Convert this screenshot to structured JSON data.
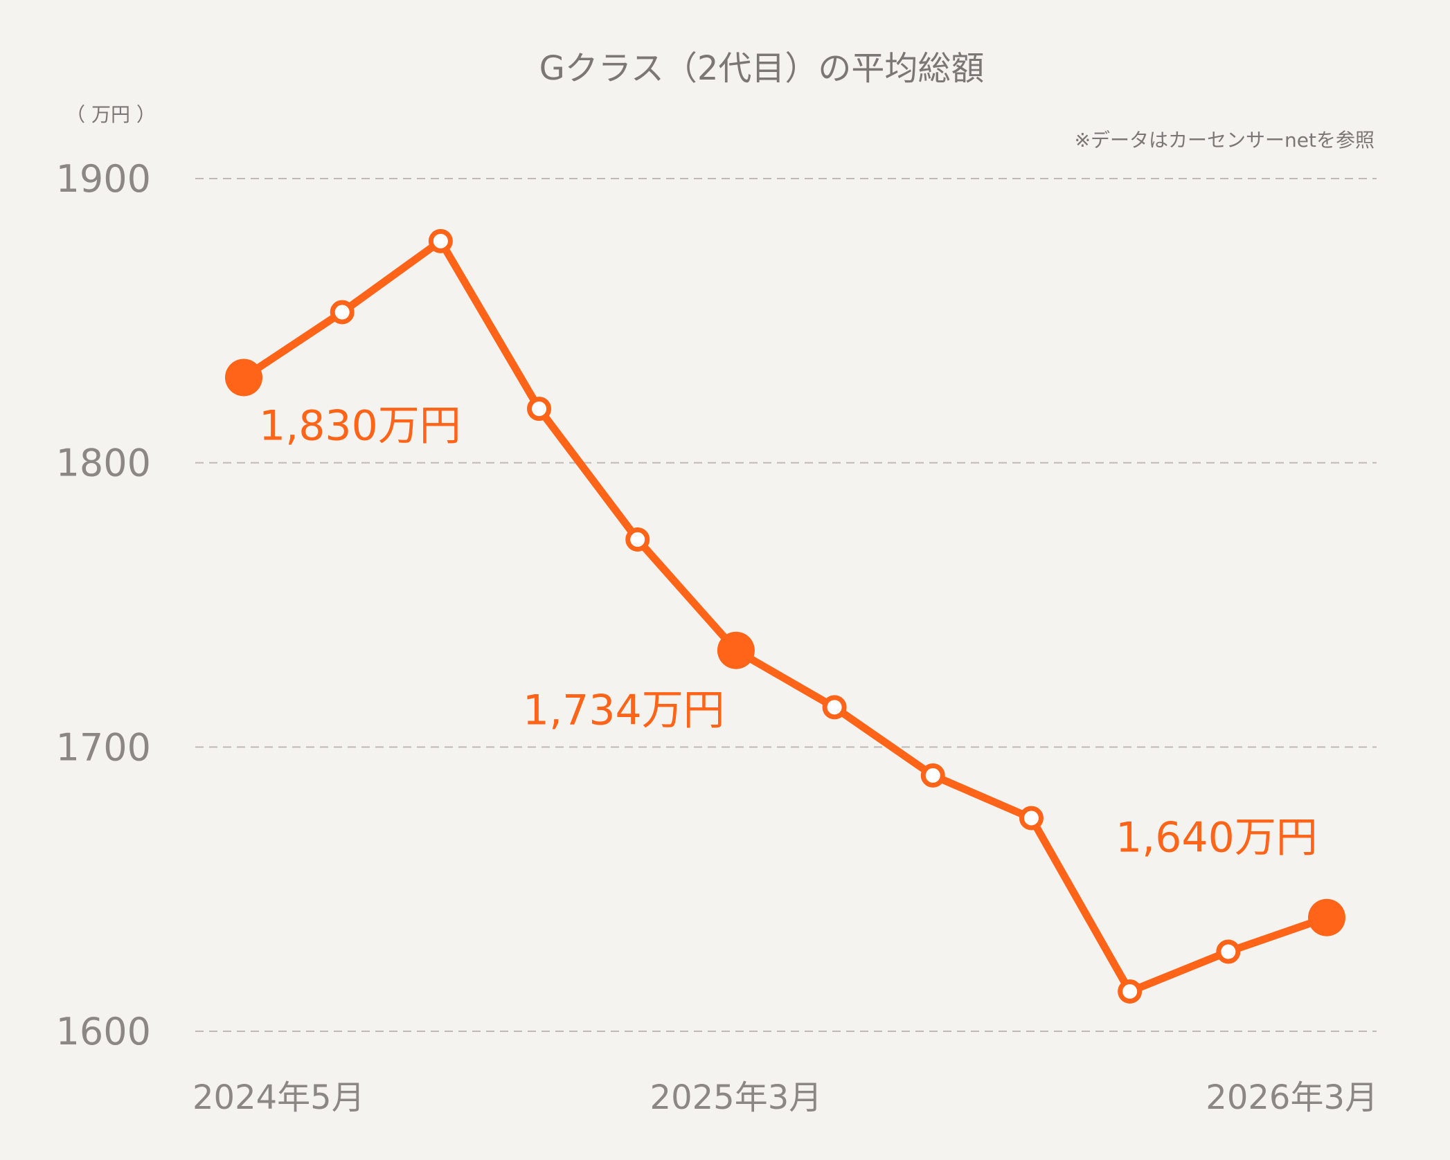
{
  "chart_data": {
    "type": "line",
    "title": "Gクラス（2代目）の平均総額",
    "unit_label": "（ 万円 ）",
    "note": "※データはカーセンサーnetを参照",
    "ylim": [
      1600,
      1900
    ],
    "y_ticks": [
      "1900",
      "1800",
      "1700",
      "1600"
    ],
    "y_tick_values": [
      1900,
      1800,
      1700,
      1600
    ],
    "grid": true,
    "x_tick_labels": [
      {
        "index": 0,
        "label": "2024年5月"
      },
      {
        "index": 5,
        "label": "2025年3月"
      },
      {
        "index": 11,
        "label": "2026年3月"
      }
    ],
    "series": [
      {
        "values": [
          1830,
          1853,
          1878,
          1819,
          1773,
          1734,
          1714,
          1690,
          1675,
          1614,
          1628,
          1640
        ]
      }
    ],
    "highlights": [
      {
        "index": 0,
        "label": "1,830万円",
        "label_position": "below-right"
      },
      {
        "index": 5,
        "label": "1,734万円",
        "label_position": "below-left"
      },
      {
        "index": 11,
        "label": "1,640万円",
        "label_position": "above-left"
      }
    ],
    "colors": {
      "line": "#ff6418",
      "marker_fill": "#ffffff",
      "background": "#f5f3f0",
      "grid": "#bcb9b6",
      "text": "#8a8785"
    }
  }
}
